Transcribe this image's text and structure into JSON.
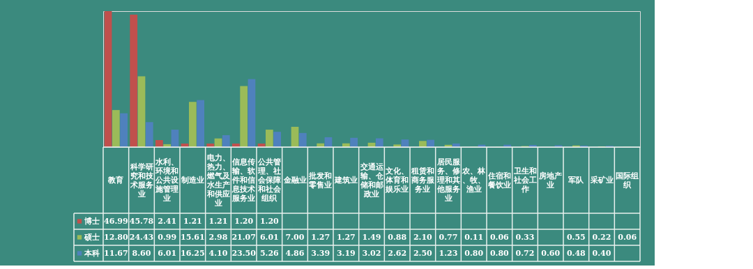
{
  "chart_data": {
    "type": "bar",
    "legend": "bottom left",
    "grid": false,
    "categories": [
      "教育",
      "科学研究和技术服务业",
      "水利、环境和公共设施管理业",
      "制造业",
      "电力、热力、燃气及水生产和供应业",
      "信息传输、软件和信息技术服务业",
      "公共管理、社会保障和社会组织",
      "金融业",
      "批发和零售业",
      "建筑业",
      "交通运输、仓储和邮政业",
      "文化、体育和娱乐业",
      "租赁和商务服务业",
      "居民服务、修理和其他服务业",
      "农、林、牧、渔业",
      "住宿和餐饮业",
      "卫生和社会工作",
      "房地产业",
      "军队",
      "采矿业",
      "国际组织"
    ],
    "series": [
      {
        "name": "博士",
        "color": "#c0504d",
        "values": [
          46.99,
          45.78,
          2.41,
          1.21,
          1.21,
          1.2,
          1.2,
          null,
          null,
          null,
          null,
          null,
          null,
          null,
          null,
          null,
          null,
          null,
          null,
          null,
          null
        ],
        "value_labels": [
          "46.99",
          "45.78",
          "2.41",
          "1.21",
          "1.21",
          "1.20",
          "1.20",
          null,
          null,
          null,
          null,
          null,
          null,
          null,
          null,
          null,
          null,
          null,
          null,
          null,
          null
        ]
      },
      {
        "name": "硕士",
        "color": "#9bbb59",
        "values": [
          12.8,
          24.43,
          0.99,
          15.61,
          2.98,
          21.07,
          6.01,
          7.0,
          1.27,
          1.27,
          1.49,
          0.88,
          2.1,
          0.77,
          0.11,
          0.06,
          0.33,
          null,
          0.55,
          0.22,
          0.06
        ],
        "value_labels": [
          "12.80",
          "24.43",
          "0.99",
          "15.61",
          "2.98",
          "21.07",
          "6.01",
          "7.00",
          "1.27",
          "1.27",
          "1.49",
          "0.88",
          "2.10",
          "0.77",
          "0.11",
          "0.06",
          "0.33",
          null,
          "0.55",
          "0.22",
          "0.06"
        ]
      },
      {
        "name": "本科",
        "color": "#4f81bd",
        "values": [
          11.67,
          8.6,
          6.01,
          16.25,
          4.1,
          23.5,
          5.26,
          4.86,
          3.39,
          3.19,
          3.02,
          2.62,
          2.5,
          1.23,
          0.8,
          0.8,
          0.72,
          0.6,
          0.48,
          0.4,
          null
        ],
        "value_labels": [
          "11.67",
          "8.60",
          "6.01",
          "16.25",
          "4.10",
          "23.50",
          "5.26",
          "4.86",
          "3.39",
          "3.19",
          "3.02",
          "2.62",
          "2.50",
          "1.23",
          "0.80",
          "0.80",
          "0.72",
          "0.60",
          "0.48",
          "0.40",
          null
        ]
      }
    ]
  }
}
